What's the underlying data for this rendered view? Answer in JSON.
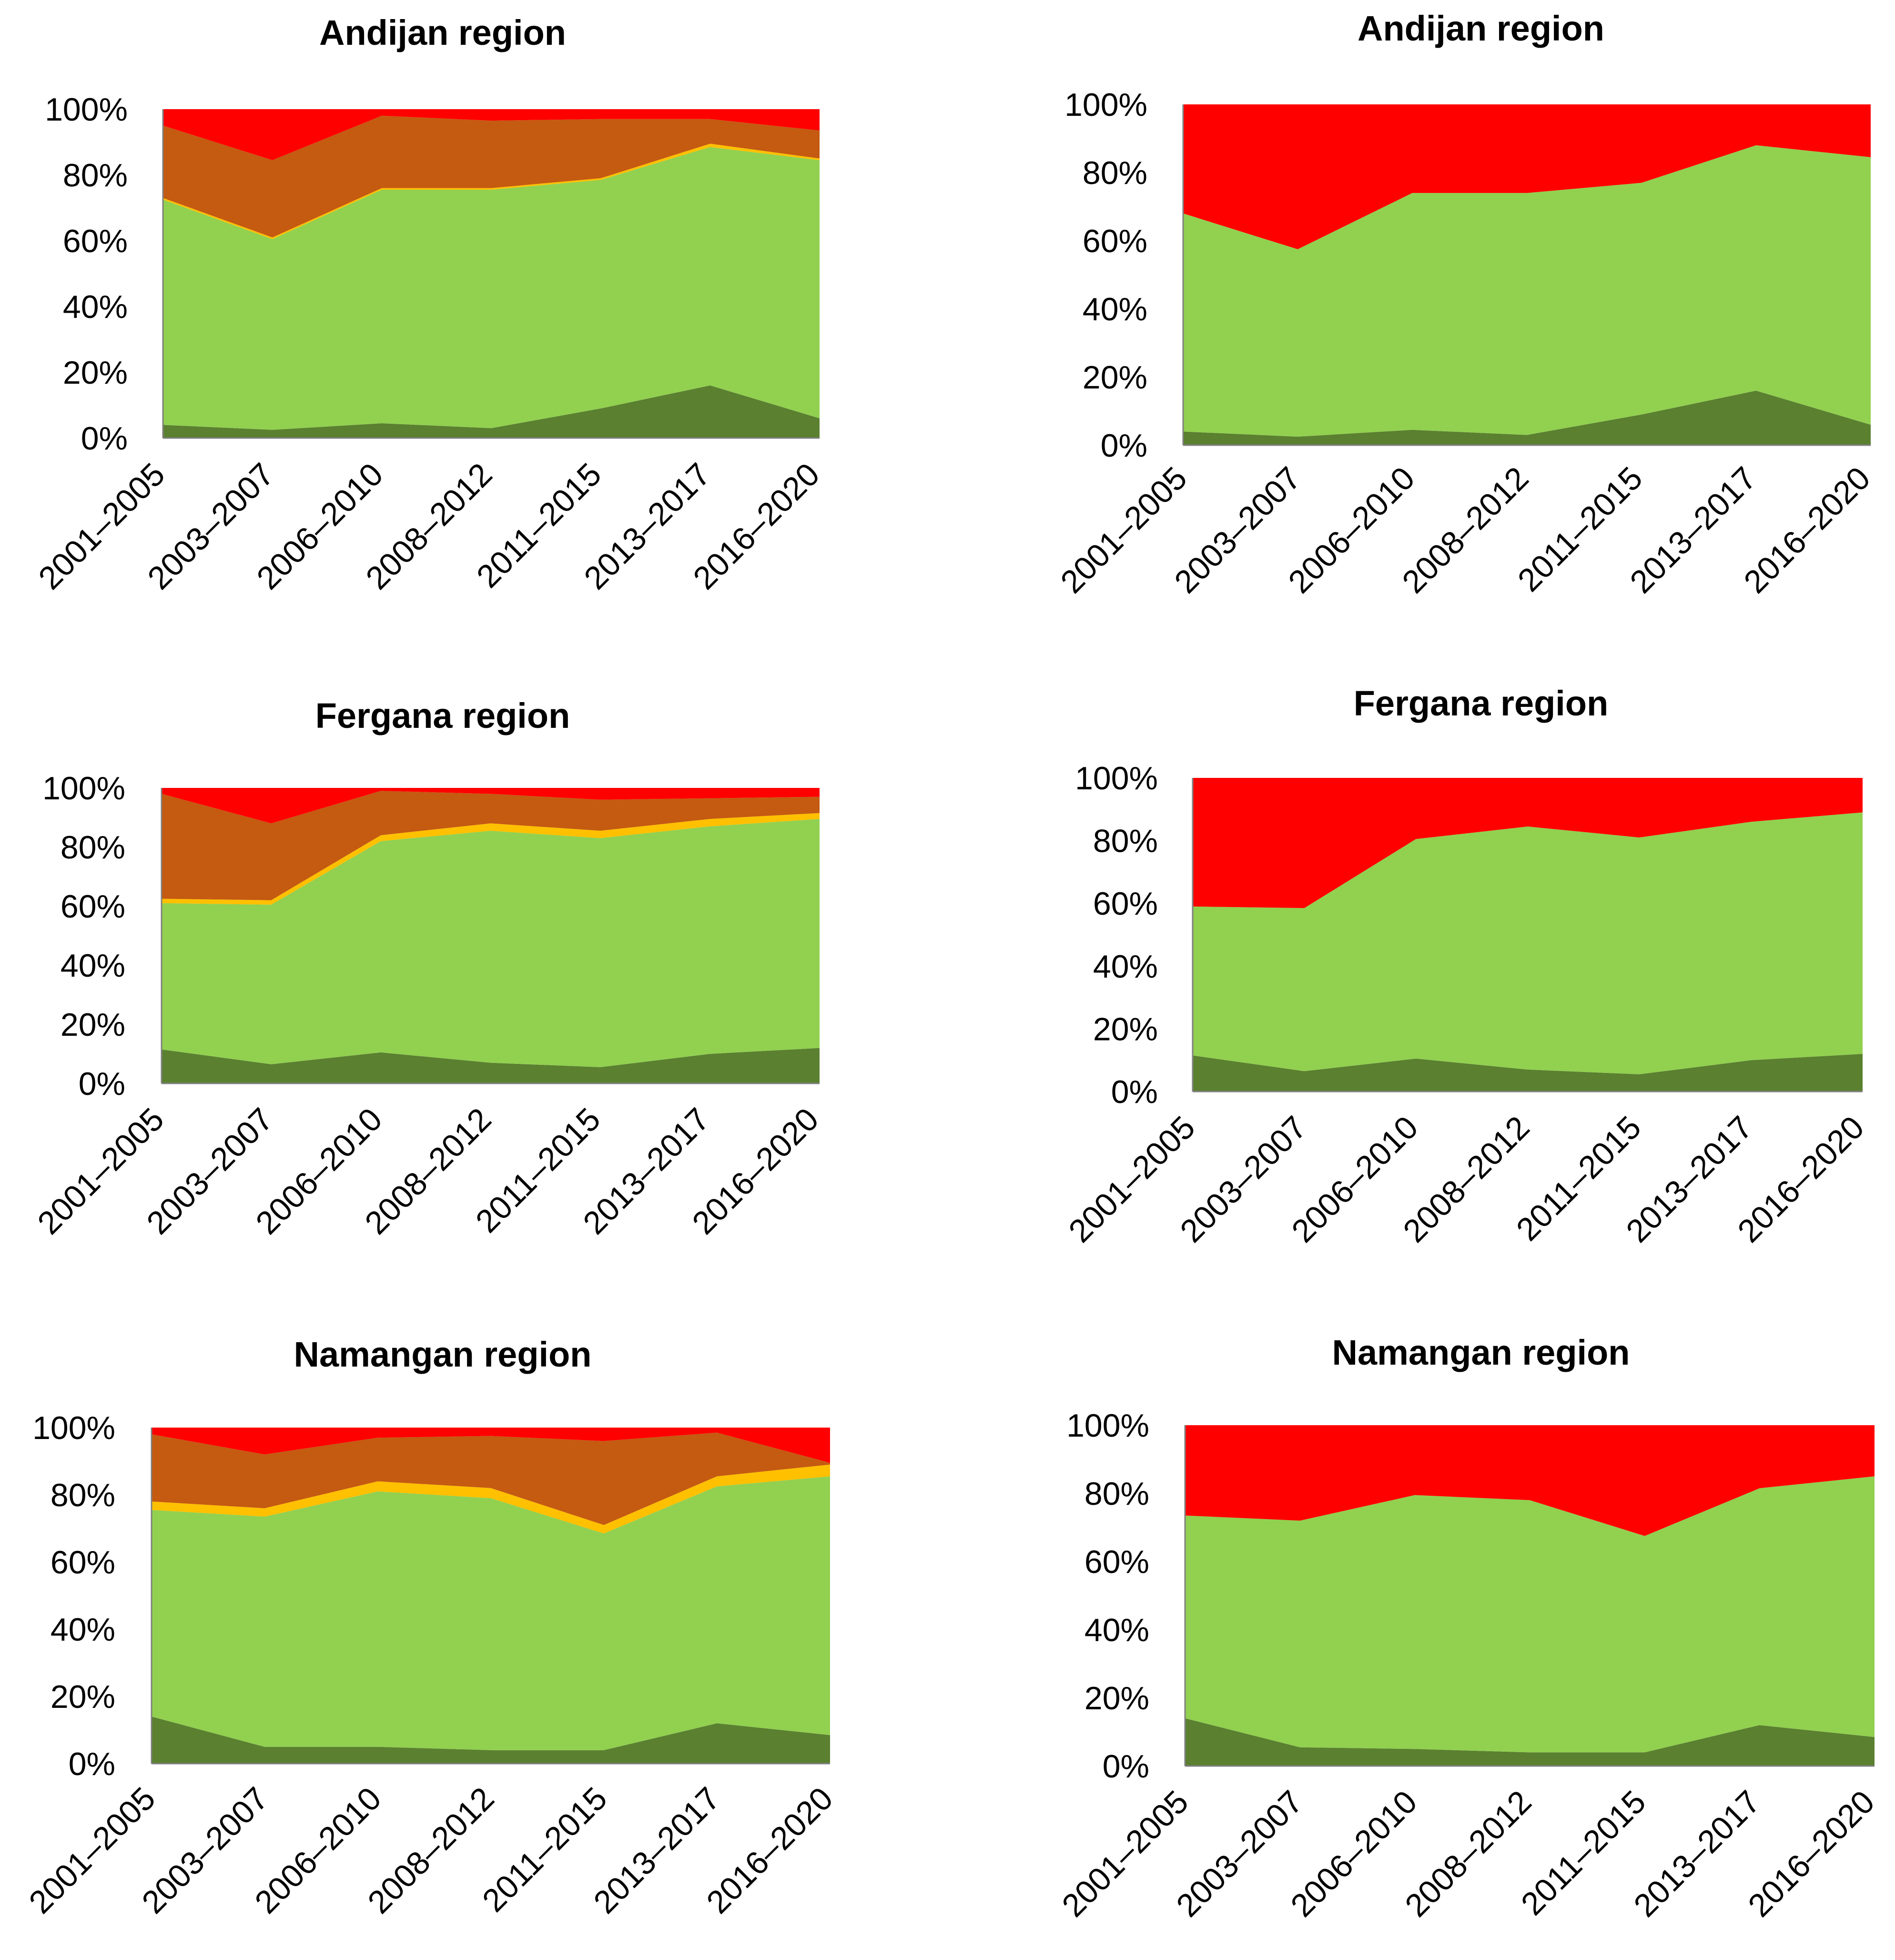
{
  "figure": {
    "colors": {
      "series_dark_green": "#5a8030",
      "series_light_green": "#92d050",
      "series_yellow": "#ffc000",
      "series_brown": "#c55a11",
      "series_red": "#ff0000",
      "axis": "#808080"
    }
  },
  "chart_data": [
    {
      "type": "area",
      "stacked": "percent",
      "title": "Andijan region",
      "categories": [
        "2001–2005",
        "2003–2007",
        "2006–2010",
        "2008–2012",
        "2011–2015",
        "2013–2017",
        "2016–2020"
      ],
      "ylim": [
        0,
        100
      ],
      "yticks": [
        "0%",
        "20%",
        "40%",
        "60%",
        "80%",
        "100%"
      ],
      "series": [
        {
          "name": "dark green",
          "values": [
            4,
            2.5,
            4.5,
            3,
            9,
            16,
            6
          ]
        },
        {
          "name": "light green",
          "values": [
            68.5,
            58,
            71,
            72.5,
            69.5,
            72.5,
            78.5
          ]
        },
        {
          "name": "yellow",
          "values": [
            0.5,
            0.5,
            0.5,
            0.5,
            0.5,
            1,
            0.5
          ]
        },
        {
          "name": "brown",
          "values": [
            22,
            23.5,
            22,
            20.5,
            18,
            7.5,
            8.5
          ]
        },
        {
          "name": "red",
          "values": [
            5,
            15.5,
            2,
            3.5,
            3,
            3,
            6.5
          ]
        }
      ]
    },
    {
      "type": "area",
      "stacked": "percent",
      "title": "Andijan region",
      "categories": [
        "2001–2005",
        "2003–2007",
        "2006–2010",
        "2008–2012",
        "2011–2015",
        "2013–2017",
        "2016–2020"
      ],
      "ylim": [
        0,
        100
      ],
      "yticks": [
        "0%",
        "20%",
        "40%",
        "60%",
        "80%",
        "100%"
      ],
      "series": [
        {
          "name": "dark green",
          "values": [
            4,
            2.5,
            4.5,
            3,
            9,
            16,
            6
          ]
        },
        {
          "name": "light green",
          "values": [
            64,
            55,
            69.5,
            71,
            68,
            72,
            78.5
          ]
        },
        {
          "name": "red",
          "values": [
            32,
            42.5,
            26,
            26,
            23,
            12,
            15.5
          ]
        }
      ]
    },
    {
      "type": "area",
      "stacked": "percent",
      "title": "Fergana region",
      "categories": [
        "2001–2005",
        "2003–2007",
        "2006–2010",
        "2008–2012",
        "2011–2015",
        "2013–2017",
        "2016–2020"
      ],
      "ylim": [
        0,
        100
      ],
      "yticks": [
        "0%",
        "20%",
        "40%",
        "60%",
        "80%",
        "100%"
      ],
      "series": [
        {
          "name": "dark green",
          "values": [
            11.5,
            6.5,
            10.5,
            7,
            5.5,
            10,
            12
          ]
        },
        {
          "name": "light green",
          "values": [
            49.5,
            54,
            71.5,
            78.5,
            77.5,
            77,
            77.5
          ]
        },
        {
          "name": "yellow",
          "values": [
            1.5,
            1.5,
            2,
            2.5,
            2.5,
            2.5,
            2
          ]
        },
        {
          "name": "brown",
          "values": [
            35.5,
            26,
            15,
            10,
            10.5,
            7,
            5.5
          ]
        },
        {
          "name": "red",
          "values": [
            2,
            12,
            1,
            2,
            4,
            3.5,
            3
          ]
        }
      ]
    },
    {
      "type": "area",
      "stacked": "percent",
      "title": "Fergana region",
      "categories": [
        "2001–2005",
        "2003–2007",
        "2006–2010",
        "2008–2012",
        "2011–2015",
        "2013–2017",
        "2016–2020"
      ],
      "ylim": [
        0,
        100
      ],
      "yticks": [
        "0%",
        "20%",
        "40%",
        "60%",
        "80%",
        "100%"
      ],
      "series": [
        {
          "name": "dark green",
          "values": [
            11.5,
            6.5,
            10.5,
            7,
            5.5,
            10,
            12
          ]
        },
        {
          "name": "light green",
          "values": [
            47.5,
            52,
            70,
            77.5,
            75.5,
            76,
            77
          ]
        },
        {
          "name": "red",
          "values": [
            41,
            41.5,
            19.5,
            15.5,
            19,
            14,
            11
          ]
        }
      ]
    },
    {
      "type": "area",
      "stacked": "percent",
      "title": "Namangan region",
      "categories": [
        "2001–2005",
        "2003–2007",
        "2006–2010",
        "2008–2012",
        "2011–2015",
        "2013–2017",
        "2016–2020"
      ],
      "ylim": [
        0,
        100
      ],
      "yticks": [
        "0%",
        "20%",
        "40%",
        "60%",
        "80%",
        "100%"
      ],
      "series": [
        {
          "name": "dark green",
          "values": [
            14,
            5,
            5,
            4,
            4,
            12,
            8.5
          ]
        },
        {
          "name": "light green",
          "values": [
            61.5,
            68.5,
            76,
            75,
            64.5,
            70.5,
            77
          ]
        },
        {
          "name": "yellow",
          "values": [
            2.5,
            2.5,
            3,
            3,
            2.5,
            3,
            3.5
          ]
        },
        {
          "name": "brown",
          "values": [
            20,
            16,
            13,
            15.5,
            25,
            13,
            0.5
          ]
        },
        {
          "name": "red",
          "values": [
            2,
            8,
            3,
            2.5,
            4,
            1.5,
            10.5
          ]
        }
      ]
    },
    {
      "type": "area",
      "stacked": "percent",
      "title": "Namangan region",
      "categories": [
        "2001–2005",
        "2003–2007",
        "2006–2010",
        "2008–2012",
        "2011–2015",
        "2013–2017",
        "2016–2020"
      ],
      "ylim": [
        0,
        100
      ],
      "yticks": [
        "0%",
        "20%",
        "40%",
        "60%",
        "80%",
        "100%"
      ],
      "series": [
        {
          "name": "dark green",
          "values": [
            14,
            5.5,
            5,
            4,
            4,
            12,
            8.5
          ]
        },
        {
          "name": "light green",
          "values": [
            59.5,
            66.5,
            74.5,
            74,
            63.5,
            69.5,
            76.5
          ]
        },
        {
          "name": "red",
          "values": [
            26.5,
            28,
            20.5,
            22,
            32.5,
            18.5,
            15
          ]
        }
      ]
    }
  ]
}
